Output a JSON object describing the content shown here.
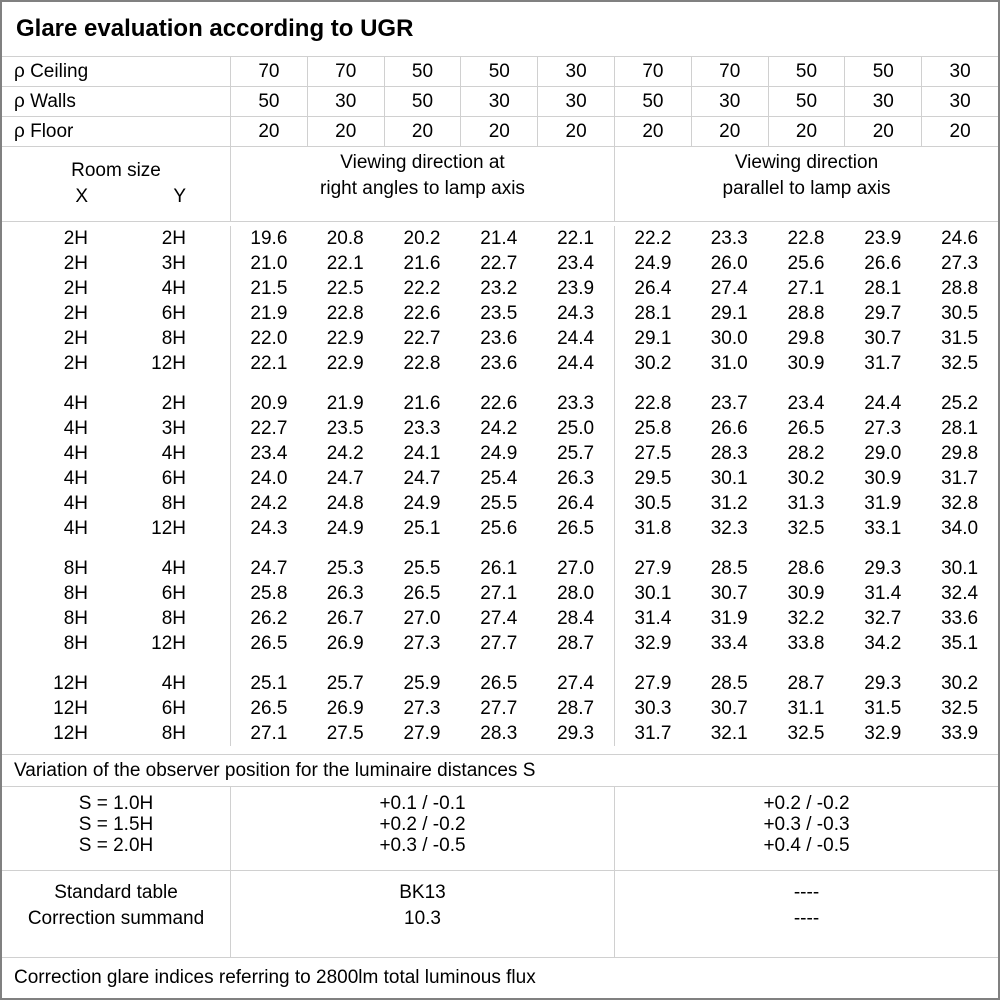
{
  "title": "Glare evaluation according to UGR",
  "colors": {
    "grid": "#d0d0d0",
    "outer_border": "#808080",
    "text": "#000000",
    "background": "#ffffff"
  },
  "reflectance_rows": [
    {
      "label": "ρ Ceiling",
      "values": [
        "70",
        "70",
        "50",
        "50",
        "30",
        "70",
        "70",
        "50",
        "50",
        "30"
      ]
    },
    {
      "label": "ρ Walls",
      "values": [
        "50",
        "30",
        "50",
        "30",
        "30",
        "50",
        "30",
        "50",
        "30",
        "30"
      ]
    },
    {
      "label": "ρ Floor",
      "values": [
        "20",
        "20",
        "20",
        "20",
        "20",
        "20",
        "20",
        "20",
        "20",
        "20"
      ]
    }
  ],
  "header": {
    "room_size": "Room size",
    "x": "X",
    "y": "Y",
    "left_group": {
      "line1": "Viewing direction at",
      "line2": "right angles to lamp axis"
    },
    "right_group": {
      "line1": "Viewing direction",
      "line2": "parallel to lamp axis"
    }
  },
  "ugr_blocks": [
    {
      "rows": [
        {
          "x": "2H",
          "y": "2H",
          "values": [
            "19.6",
            "20.8",
            "20.2",
            "21.4",
            "22.1",
            "22.2",
            "23.3",
            "22.8",
            "23.9",
            "24.6"
          ]
        },
        {
          "x": "2H",
          "y": "3H",
          "values": [
            "21.0",
            "22.1",
            "21.6",
            "22.7",
            "23.4",
            "24.9",
            "26.0",
            "25.6",
            "26.6",
            "27.3"
          ]
        },
        {
          "x": "2H",
          "y": "4H",
          "values": [
            "21.5",
            "22.5",
            "22.2",
            "23.2",
            "23.9",
            "26.4",
            "27.4",
            "27.1",
            "28.1",
            "28.8"
          ]
        },
        {
          "x": "2H",
          "y": "6H",
          "values": [
            "21.9",
            "22.8",
            "22.6",
            "23.5",
            "24.3",
            "28.1",
            "29.1",
            "28.8",
            "29.7",
            "30.5"
          ]
        },
        {
          "x": "2H",
          "y": "8H",
          "values": [
            "22.0",
            "22.9",
            "22.7",
            "23.6",
            "24.4",
            "29.1",
            "30.0",
            "29.8",
            "30.7",
            "31.5"
          ]
        },
        {
          "x": "2H",
          "y": "12H",
          "values": [
            "22.1",
            "22.9",
            "22.8",
            "23.6",
            "24.4",
            "30.2",
            "31.0",
            "30.9",
            "31.7",
            "32.5"
          ]
        }
      ]
    },
    {
      "rows": [
        {
          "x": "4H",
          "y": "2H",
          "values": [
            "20.9",
            "21.9",
            "21.6",
            "22.6",
            "23.3",
            "22.8",
            "23.7",
            "23.4",
            "24.4",
            "25.2"
          ]
        },
        {
          "x": "4H",
          "y": "3H",
          "values": [
            "22.7",
            "23.5",
            "23.3",
            "24.2",
            "25.0",
            "25.8",
            "26.6",
            "26.5",
            "27.3",
            "28.1"
          ]
        },
        {
          "x": "4H",
          "y": "4H",
          "values": [
            "23.4",
            "24.2",
            "24.1",
            "24.9",
            "25.7",
            "27.5",
            "28.3",
            "28.2",
            "29.0",
            "29.8"
          ]
        },
        {
          "x": "4H",
          "y": "6H",
          "values": [
            "24.0",
            "24.7",
            "24.7",
            "25.4",
            "26.3",
            "29.5",
            "30.1",
            "30.2",
            "30.9",
            "31.7"
          ]
        },
        {
          "x": "4H",
          "y": "8H",
          "values": [
            "24.2",
            "24.8",
            "24.9",
            "25.5",
            "26.4",
            "30.5",
            "31.2",
            "31.3",
            "31.9",
            "32.8"
          ]
        },
        {
          "x": "4H",
          "y": "12H",
          "values": [
            "24.3",
            "24.9",
            "25.1",
            "25.6",
            "26.5",
            "31.8",
            "32.3",
            "32.5",
            "33.1",
            "34.0"
          ]
        }
      ]
    },
    {
      "rows": [
        {
          "x": "8H",
          "y": "4H",
          "values": [
            "24.7",
            "25.3",
            "25.5",
            "26.1",
            "27.0",
            "27.9",
            "28.5",
            "28.6",
            "29.3",
            "30.1"
          ]
        },
        {
          "x": "8H",
          "y": "6H",
          "values": [
            "25.8",
            "26.3",
            "26.5",
            "27.1",
            "28.0",
            "30.1",
            "30.7",
            "30.9",
            "31.4",
            "32.4"
          ]
        },
        {
          "x": "8H",
          "y": "8H",
          "values": [
            "26.2",
            "26.7",
            "27.0",
            "27.4",
            "28.4",
            "31.4",
            "31.9",
            "32.2",
            "32.7",
            "33.6"
          ]
        },
        {
          "x": "8H",
          "y": "12H",
          "values": [
            "26.5",
            "26.9",
            "27.3",
            "27.7",
            "28.7",
            "32.9",
            "33.4",
            "33.8",
            "34.2",
            "35.1"
          ]
        }
      ]
    },
    {
      "rows": [
        {
          "x": "12H",
          "y": "4H",
          "values": [
            "25.1",
            "25.7",
            "25.9",
            "26.5",
            "27.4",
            "27.9",
            "28.5",
            "28.7",
            "29.3",
            "30.2"
          ]
        },
        {
          "x": "12H",
          "y": "6H",
          "values": [
            "26.5",
            "26.9",
            "27.3",
            "27.7",
            "28.7",
            "30.3",
            "30.7",
            "31.1",
            "31.5",
            "32.5"
          ]
        },
        {
          "x": "12H",
          "y": "8H",
          "values": [
            "27.1",
            "27.5",
            "27.9",
            "28.3",
            "29.3",
            "31.7",
            "32.1",
            "32.5",
            "32.9",
            "33.9"
          ]
        }
      ]
    }
  ],
  "variation_note": "Variation of the observer position for the luminaire distances S",
  "variation_rows": [
    {
      "label": "S = 1.0H",
      "left": "+0.1 / -0.1",
      "right": "+0.2 / -0.2"
    },
    {
      "label": "S = 1.5H",
      "left": "+0.2 / -0.2",
      "right": "+0.3 / -0.3"
    },
    {
      "label": "S = 2.0H",
      "left": "+0.3 / -0.5",
      "right": "+0.4 / -0.5"
    }
  ],
  "summary_rows": [
    {
      "label": "Standard table",
      "left": "BK13",
      "right": "----"
    },
    {
      "label": "Correction summand",
      "left": "10.3",
      "right": "----"
    }
  ],
  "footer": "Correction glare indices referring to 2800lm total luminous flux"
}
